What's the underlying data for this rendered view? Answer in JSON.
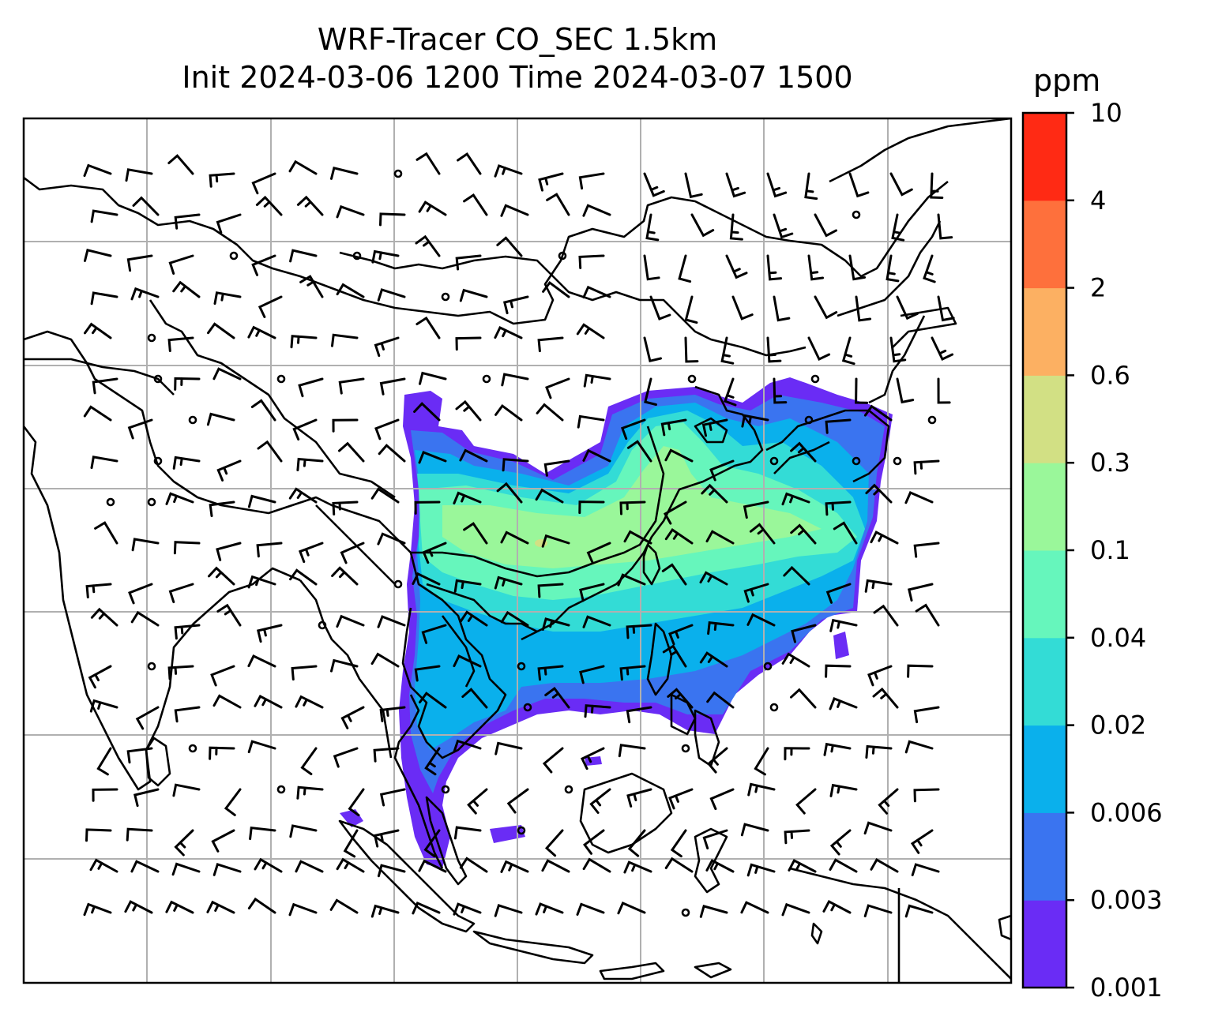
{
  "title": {
    "line1": "WRF-Tracer CO_SEC 1.5km",
    "line2": "Init 2024-03-06 1200 Time 2024-03-07 1500"
  },
  "colorbar": {
    "label": "ppm",
    "levels": [
      "0.001",
      "0.003",
      "0.006",
      "0.02",
      "0.04",
      "0.1",
      "0.3",
      "0.6",
      "2",
      "4",
      "10"
    ],
    "colors": [
      "#6a2cf5",
      "#3a74f0",
      "#0ab0ec",
      "#33dcd6",
      "#66f6bc",
      "#9af79a",
      "#d2e084",
      "#fcb062",
      "#fe703c",
      "#ff2a14"
    ]
  },
  "map": {
    "grid": true,
    "field": "CO_SEC tracer concentration",
    "overlay": "wind barbs",
    "coastline_color": "#000000",
    "grid_color": "#b0b0b0"
  }
}
